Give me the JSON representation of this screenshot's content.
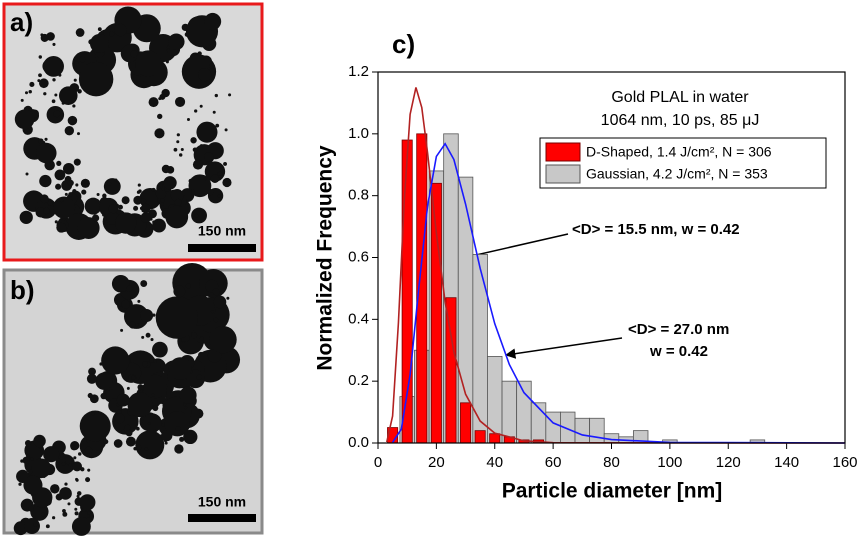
{
  "panels": [
    {
      "label": "a)",
      "scale_bar": "150 nm"
    },
    {
      "label": "b)",
      "scale_bar": "150 nm"
    }
  ],
  "chart_data": {
    "type": "bar",
    "panel_label": "c)",
    "xlabel": "Particle diameter [nm]",
    "ylabel": "Normalized Frequency",
    "xlim": [
      0,
      160
    ],
    "ylim": [
      0,
      1.2
    ],
    "xticks": [
      0,
      20,
      40,
      60,
      80,
      100,
      120,
      140,
      160
    ],
    "yticks": [
      {
        "value": 0,
        "label": "0.0"
      },
      0.2,
      0.4,
      0.6,
      0.8,
      {
        "value": 1,
        "label": "1.0"
      },
      1.2
    ],
    "legend_title": [
      "Gold PLAL in water",
      "1064 nm, 10 ps, 85 μJ"
    ],
    "legend": "upper right",
    "series": [
      {
        "name": "Gaussian, 4.2 J/cm², N = 353",
        "color": "#c8c8c8",
        "x": [
          10,
          15,
          20,
          25,
          30,
          35,
          40,
          45,
          50,
          55,
          60,
          65,
          70,
          75,
          80,
          85,
          90,
          95,
          100,
          105,
          110,
          115,
          120,
          125,
          130
        ],
        "values": [
          0.15,
          0.3,
          0.88,
          1.0,
          0.86,
          0.61,
          0.28,
          0.2,
          0.2,
          0.13,
          0.1,
          0.1,
          0.08,
          0.08,
          0.03,
          0.02,
          0.04,
          0,
          0.01,
          0,
          0,
          0,
          0,
          0,
          0.01
        ]
      },
      {
        "name": "D-Shaped, 1.4 J/cm², N = 306",
        "color": "#ff0000",
        "x": [
          5,
          10,
          15,
          20,
          25,
          30,
          35,
          40,
          45,
          50,
          55
        ],
        "values": [
          0.05,
          0.98,
          1.0,
          0.84,
          0.47,
          0.13,
          0.04,
          0.03,
          0.02,
          0.01,
          0.01
        ]
      }
    ],
    "curves": [
      {
        "color": "#b22222",
        "x": [
          3,
          5,
          7,
          9,
          11,
          13,
          15,
          17,
          20,
          23,
          26,
          30,
          35,
          40,
          50,
          60,
          160
        ],
        "values": [
          0.003,
          0.087,
          0.389,
          0.785,
          1.063,
          1.15,
          1.085,
          0.937,
          0.679,
          0.456,
          0.294,
          0.158,
          0.071,
          0.032,
          0.007,
          0.001,
          0
        ]
      },
      {
        "color": "#1a1aff",
        "x": [
          5,
          8,
          11,
          14,
          17,
          20,
          23,
          26,
          30,
          35,
          40,
          45,
          50,
          60,
          70,
          80,
          100,
          160
        ],
        "values": [
          0.002,
          0.045,
          0.221,
          0.503,
          0.768,
          0.927,
          0.968,
          0.917,
          0.773,
          0.565,
          0.386,
          0.254,
          0.163,
          0.065,
          0.026,
          0.011,
          0.002,
          0
        ]
      }
    ],
    "annotations": [
      {
        "text": "<D> = 15.5 nm, w = 0.42",
        "color": "#ff0000"
      },
      {
        "text": "<D> = 27.0 nm",
        "color": "#000000"
      },
      {
        "text": "w = 0.42",
        "color": "#000000"
      }
    ]
  }
}
